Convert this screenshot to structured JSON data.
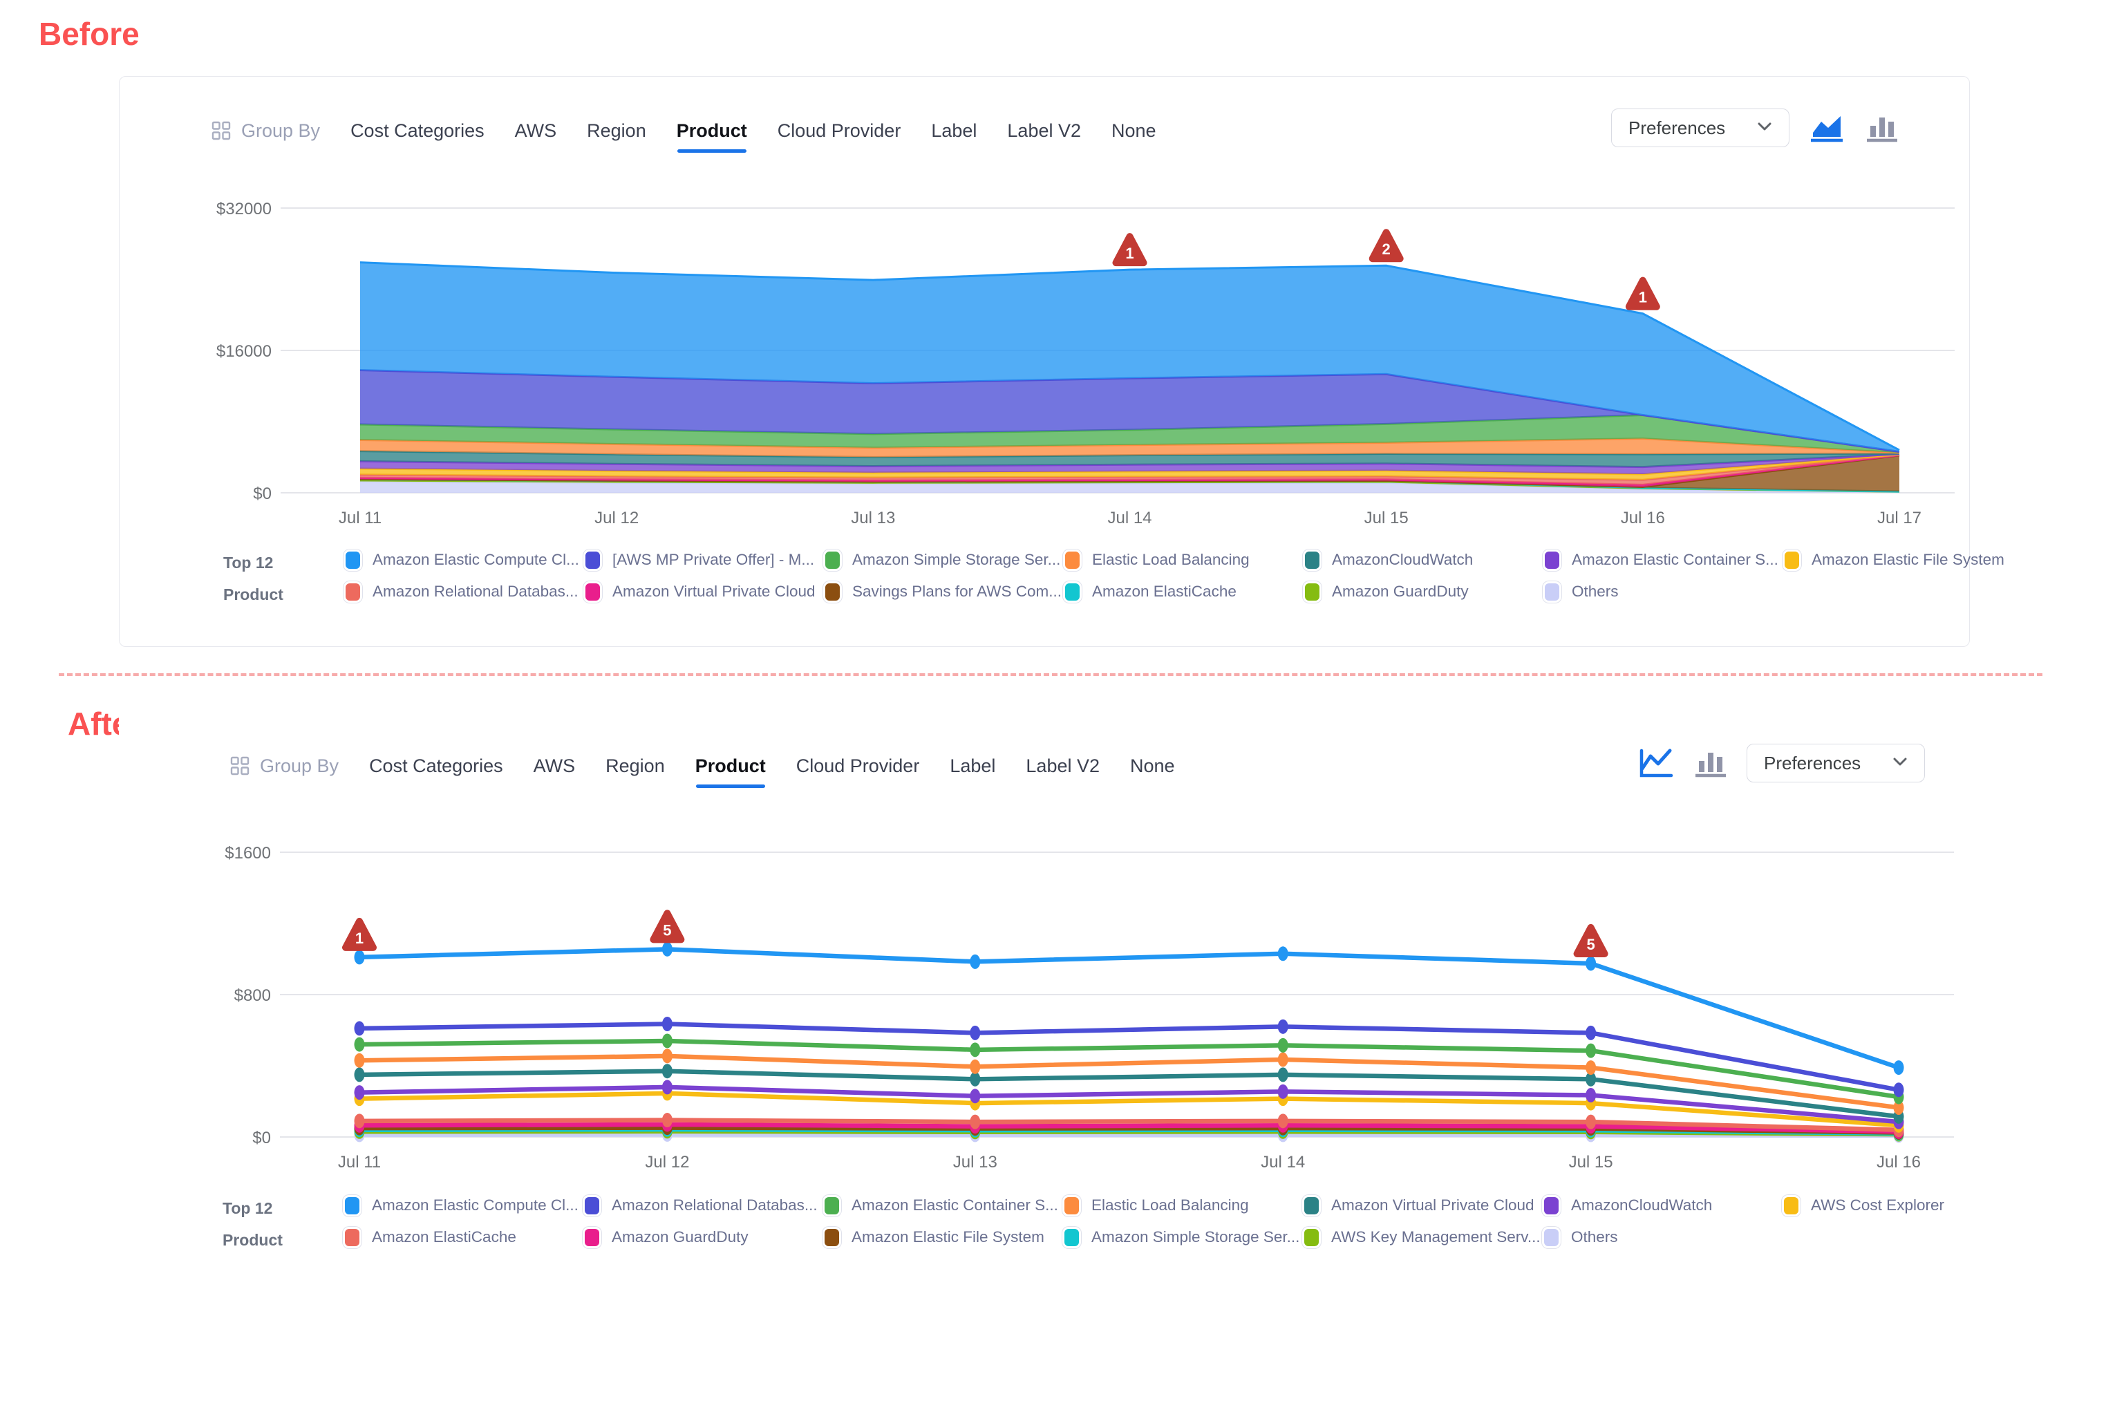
{
  "page": {
    "before_label": "Before",
    "after_label": "After"
  },
  "toolbar": {
    "group_by_label": "Group By",
    "tabs": [
      "Cost Categories",
      "AWS",
      "Region",
      "Product",
      "Cloud Provider",
      "Label",
      "Label V2",
      "None"
    ],
    "active_tab": "Product",
    "preferences_label": "Preferences"
  },
  "legend_title": {
    "line1": "Top 12",
    "line2": "Product"
  },
  "colors": {
    "accent_blue": "#1A73E8",
    "alert_red": "#C23A33",
    "title_red": "#FA5252",
    "icon_gray": "#9094A8"
  },
  "chart_data": [
    {
      "id": "before",
      "type": "area",
      "stacked": true,
      "x": [
        "Jul 11",
        "Jul 12",
        "Jul 13",
        "Jul 14",
        "Jul 15",
        "Jul 16",
        "Jul 17"
      ],
      "ylim": [
        0,
        32000
      ],
      "yticks": [
        {
          "v": 0,
          "label": "$0"
        },
        {
          "v": 16000,
          "label": "$16000"
        },
        {
          "v": 32000,
          "label": "$32000"
        }
      ],
      "grid": true,
      "legend_position": "bottom",
      "annotations": [
        {
          "i": 3,
          "label": "1"
        },
        {
          "i": 4,
          "label": "2"
        },
        {
          "i": 5,
          "label": "1"
        }
      ],
      "series": [
        {
          "name": "Amazon Elastic Compute Cl...",
          "color": "#2196F3",
          "values": [
            12100,
            11700,
            11600,
            12200,
            12200,
            11400,
            180
          ]
        },
        {
          "name": "[AWS MP Private Offer] - M...",
          "color": "#4B4ED6",
          "values": [
            6100,
            5900,
            5700,
            5800,
            5600,
            0,
            0
          ]
        },
        {
          "name": "Amazon Simple Storage Ser...",
          "color": "#4CAF50",
          "values": [
            1750,
            1650,
            1550,
            1700,
            2100,
            2640,
            120
          ]
        },
        {
          "name": "Elastic Load Balancing",
          "color": "#FC8B3E",
          "values": [
            1250,
            1150,
            1060,
            1150,
            1250,
            1760,
            80
          ]
        },
        {
          "name": "AmazonCloudWatch",
          "color": "#2B8286",
          "values": [
            1150,
            1080,
            1010,
            1060,
            1100,
            1440,
            60
          ]
        },
        {
          "name": "Amazon Elastic Container S...",
          "color": "#7B42D1",
          "values": [
            820,
            780,
            730,
            770,
            790,
            800,
            50
          ]
        },
        {
          "name": "Amazon Elastic File System",
          "color": "#F8BC15",
          "values": [
            680,
            620,
            560,
            600,
            640,
            640,
            40
          ]
        },
        {
          "name": "Amazon Relational Databas...",
          "color": "#ED6A5E",
          "values": [
            350,
            330,
            310,
            330,
            340,
            560,
            40
          ]
        },
        {
          "name": "Amazon Virtual Private Cloud",
          "color": "#E91E8C",
          "values": [
            160,
            150,
            140,
            150,
            150,
            240,
            30
          ]
        },
        {
          "name": "Savings Plans for AWS Com...",
          "color": "#8B4E10",
          "values": [
            10,
            10,
            10,
            10,
            10,
            80,
            4050
          ]
        },
        {
          "name": "Amazon ElastiCache",
          "color": "#12C6D0",
          "values": [
            120,
            110,
            105,
            110,
            110,
            70,
            15
          ]
        },
        {
          "name": "Amazon GuardDuty",
          "color": "#85BC11",
          "values": [
            100,
            95,
            90,
            95,
            95,
            60,
            15
          ]
        },
        {
          "name": "Others",
          "color": "#C9CEF7",
          "values": [
            1300,
            1150,
            1050,
            1100,
            1150,
            450,
            120
          ]
        }
      ]
    },
    {
      "id": "after",
      "type": "line",
      "stacked": false,
      "x": [
        "Jul 11",
        "Jul 12",
        "Jul 13",
        "Jul 14",
        "Jul 15",
        "Jul 16"
      ],
      "ylim": [
        0,
        1600
      ],
      "yticks": [
        {
          "v": 0,
          "label": "$0"
        },
        {
          "v": 800,
          "label": "$800"
        },
        {
          "v": 1600,
          "label": "$1600"
        }
      ],
      "grid": true,
      "legend_position": "bottom",
      "annotations": [
        {
          "i": 0,
          "label": "1"
        },
        {
          "i": 1,
          "label": "5"
        },
        {
          "i": 4,
          "label": "5"
        }
      ],
      "series": [
        {
          "name": "Amazon Elastic Compute Cl...",
          "color": "#2196F3",
          "values": [
            1010,
            1055,
            985,
            1030,
            975,
            390
          ]
        },
        {
          "name": "Amazon Relational Databas...",
          "color": "#4B4ED6",
          "values": [
            610,
            635,
            585,
            620,
            585,
            265
          ]
        },
        {
          "name": "Amazon Elastic Container S...",
          "color": "#4CAF50",
          "values": [
            520,
            540,
            490,
            515,
            485,
            225
          ]
        },
        {
          "name": "Elastic Load Balancing",
          "color": "#FC8B3E",
          "values": [
            430,
            455,
            395,
            435,
            390,
            165
          ]
        },
        {
          "name": "Amazon Virtual Private Cloud",
          "color": "#2B8286",
          "values": [
            350,
            370,
            325,
            350,
            325,
            115
          ]
        },
        {
          "name": "AmazonCloudWatch",
          "color": "#7B42D1",
          "values": [
            250,
            280,
            230,
            255,
            235,
            85
          ]
        },
        {
          "name": "AWS Cost Explorer",
          "color": "#F8BC15",
          "values": [
            215,
            245,
            190,
            215,
            190,
            65
          ]
        },
        {
          "name": "Amazon ElastiCache",
          "color": "#ED6A5E",
          "values": [
            90,
            95,
            85,
            90,
            85,
            40
          ]
        },
        {
          "name": "Amazon GuardDuty",
          "color": "#E91E8C",
          "values": [
            65,
            70,
            60,
            65,
            60,
            30
          ]
        },
        {
          "name": "Amazon Elastic File System",
          "color": "#8B4E10",
          "values": [
            50,
            52,
            48,
            50,
            48,
            25
          ]
        },
        {
          "name": "Amazon Simple Storage Ser...",
          "color": "#12C6D0",
          "values": [
            40,
            42,
            38,
            40,
            38,
            20
          ]
        },
        {
          "name": "AWS Key Management Serv...",
          "color": "#85BC11",
          "values": [
            30,
            32,
            28,
            30,
            28,
            15
          ]
        },
        {
          "name": "Others",
          "color": "#C9CEF7",
          "values": [
            12,
            14,
            12,
            12,
            12,
            8
          ]
        }
      ]
    }
  ]
}
